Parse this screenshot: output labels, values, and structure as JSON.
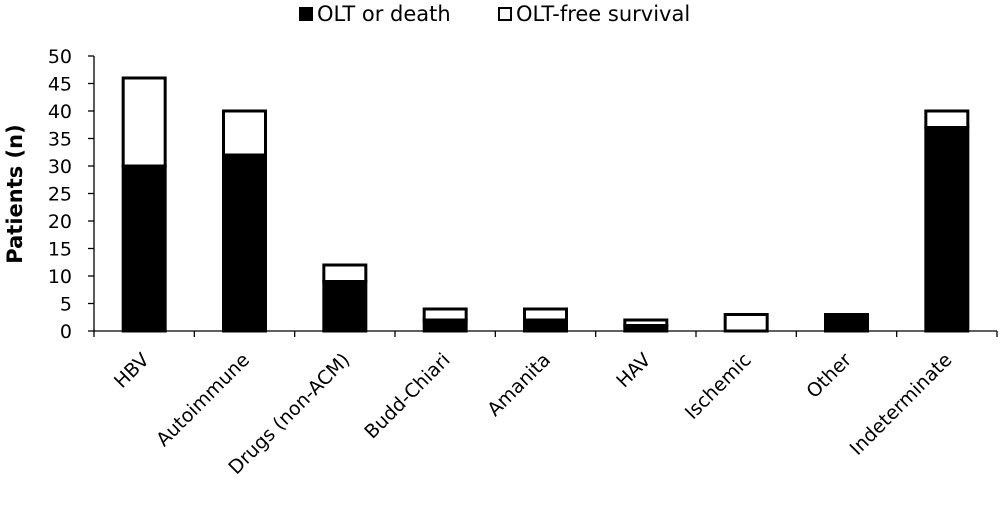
{
  "chart_data": {
    "type": "bar",
    "stacked": true,
    "categories": [
      "HBV",
      "Autoimmune",
      "Drugs (non-ACM)",
      "Budd-Chiari",
      "Amanita",
      "HAV",
      "Ischemic",
      "Other",
      "Indeterminate"
    ],
    "series": [
      {
        "name": "OLT or death",
        "color": "#000000",
        "values": [
          30,
          32,
          9,
          2,
          2,
          1,
          0,
          3,
          37
        ]
      },
      {
        "name": "OLT-free survival",
        "color": "#ffffff",
        "values": [
          16,
          8,
          3,
          2,
          2,
          1,
          3,
          0,
          3
        ]
      }
    ],
    "ylabel": "Patients (n)",
    "xlabel": "",
    "ylim": [
      0,
      50
    ],
    "yticks": [
      0,
      5,
      10,
      15,
      20,
      25,
      30,
      35,
      40,
      45,
      50
    ],
    "grid": false,
    "legend_position": "top"
  }
}
